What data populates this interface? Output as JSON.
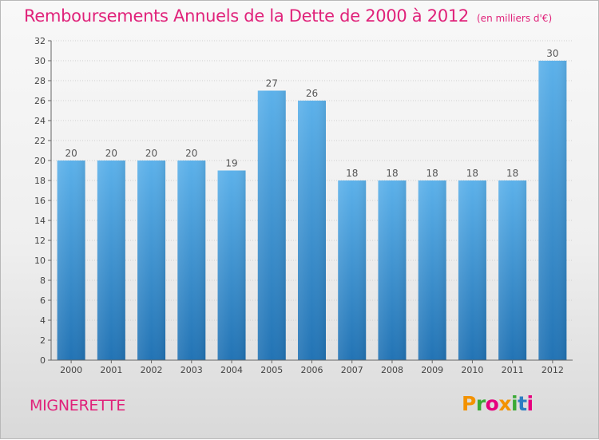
{
  "title": "Remboursements Annuels de la Dette de 2000 à 2012",
  "unit_note": "(en milliers d'€)",
  "commune": "MIGNERETTE",
  "logo": {
    "text": "Proxiti",
    "letter_colors": [
      "#f39200",
      "#3aaa35",
      "#e6007e",
      "#f39200",
      "#3aaa35",
      "#2c7dc3",
      "#e6007e"
    ]
  },
  "colors": {
    "title": "#e0227a",
    "bar_top": "#5cb1ea",
    "bar_bottom": "#2273b4",
    "axis": "#666666",
    "grid": "#cfcfcf"
  },
  "chart_data": {
    "type": "bar",
    "title": "Remboursements Annuels de la Dette de 2000 à 2012",
    "xlabel": "",
    "ylabel": "",
    "categories": [
      "2000",
      "2001",
      "2002",
      "2003",
      "2004",
      "2005",
      "2006",
      "2007",
      "2008",
      "2009",
      "2010",
      "2011",
      "2012"
    ],
    "values": [
      20,
      20,
      20,
      20,
      19,
      27,
      26,
      18,
      18,
      18,
      18,
      18,
      30
    ],
    "data_labels": [
      "20",
      "20",
      "20",
      "20",
      "19",
      "27",
      "26",
      "18",
      "18",
      "18",
      "18",
      "18",
      "30"
    ],
    "ylim": [
      0,
      32
    ],
    "yticks": [
      0,
      2,
      4,
      6,
      8,
      10,
      12,
      14,
      16,
      18,
      20,
      22,
      24,
      26,
      28,
      30,
      32
    ],
    "grid": true
  }
}
